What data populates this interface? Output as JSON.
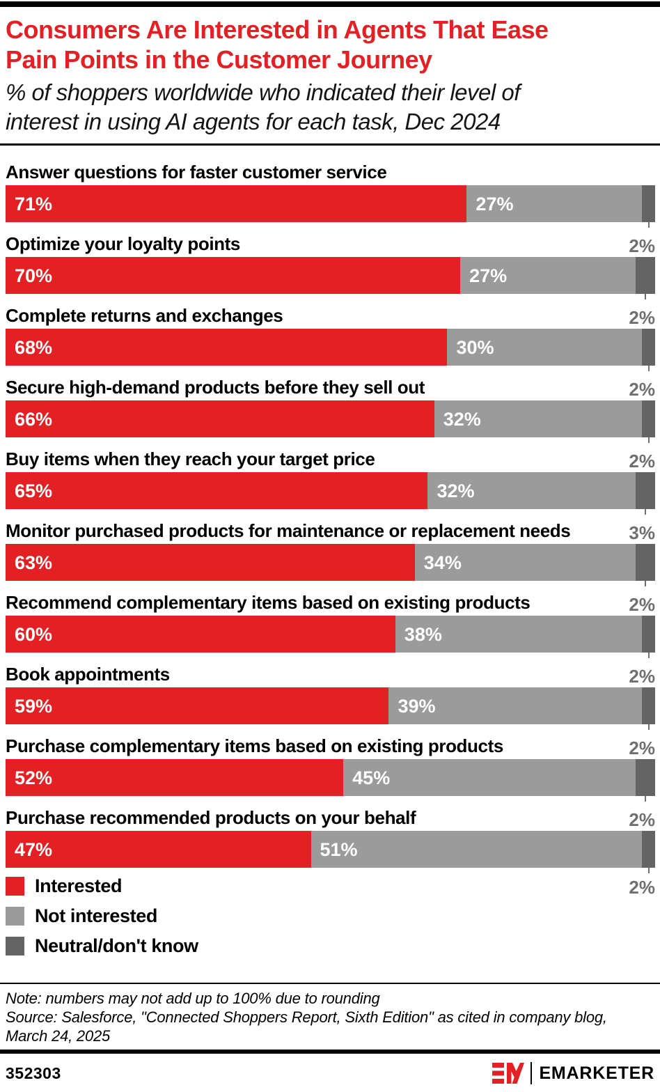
{
  "header": {
    "title_line1": "Consumers Are Interested in Agents That Ease",
    "title_line2": "Pain Points in the Customer Journey",
    "subtitle_line1": "% of shoppers worldwide who indicated their level of",
    "subtitle_line2": "interest in using AI agents for each task, Dec 2024"
  },
  "chart_data": {
    "type": "bar",
    "stacked": true,
    "orientation": "horizontal",
    "unit": "%",
    "xlim": [
      0,
      100
    ],
    "categories": [
      "Answer questions for faster customer service",
      "Optimize your loyalty points",
      "Complete returns and exchanges",
      "Secure high-demand products before they sell out",
      "Buy items when they reach your target price",
      "Monitor purchased products for maintenance or replacement needs",
      "Recommend complementary items based on existing products",
      "Book appointments",
      "Purchase complementary items based on existing products",
      "Purchase recommended products on your behalf"
    ],
    "series": [
      {
        "name": "Interested",
        "color": "#e32124",
        "values": [
          71,
          70,
          68,
          66,
          65,
          63,
          60,
          59,
          52,
          47
        ]
      },
      {
        "name": "Not interested",
        "color": "#9b9b9b",
        "values": [
          27,
          27,
          30,
          32,
          32,
          34,
          38,
          39,
          45,
          51
        ]
      },
      {
        "name": "Neutral/don't know",
        "color": "#646464",
        "values": [
          2,
          2,
          2,
          2,
          3,
          2,
          2,
          2,
          2,
          2
        ]
      }
    ]
  },
  "legend": {
    "items": [
      {
        "label": "Interested",
        "color": "#e32124"
      },
      {
        "label": "Not interested",
        "color": "#9b9b9b"
      },
      {
        "label": "Neutral/don't know",
        "color": "#646464"
      }
    ]
  },
  "footer": {
    "note_line": "Note: numbers may not add up to 100% due to rounding",
    "source_line1": "Source: Salesforce, \"Connected Shoppers Report, Sixth Edition\" as cited in company blog,",
    "source_line2": "March 24, 2025",
    "chart_id": "352303",
    "brand_name": "EMARKETER"
  }
}
